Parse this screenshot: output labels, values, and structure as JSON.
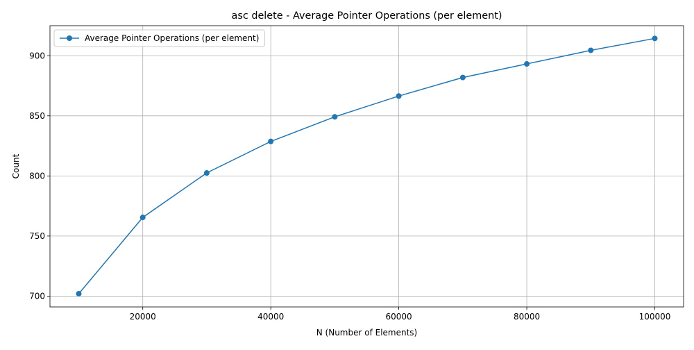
{
  "chart_data": {
    "type": "line",
    "title": "asc delete - Average Pointer Operations (per element)",
    "xlabel": "N (Number of Elements)",
    "ylabel": "Count",
    "xlim": [
      5500,
      104500
    ],
    "ylim": [
      691,
      925
    ],
    "xticks": [
      20000,
      40000,
      60000,
      80000,
      100000
    ],
    "yticks": [
      700,
      750,
      800,
      850,
      900
    ],
    "grid": true,
    "legend_position": "upper-left",
    "series": [
      {
        "name": "Average Pointer Operations (per element)",
        "color": "#1f77b4",
        "marker": "circle",
        "x": [
          10000,
          20000,
          30000,
          40000,
          50000,
          60000,
          70000,
          80000,
          90000,
          100000
        ],
        "y": [
          702,
          765.5,
          802.5,
          828.7,
          849.2,
          866.5,
          881.9,
          893.2,
          904.5,
          914.4
        ]
      }
    ]
  }
}
